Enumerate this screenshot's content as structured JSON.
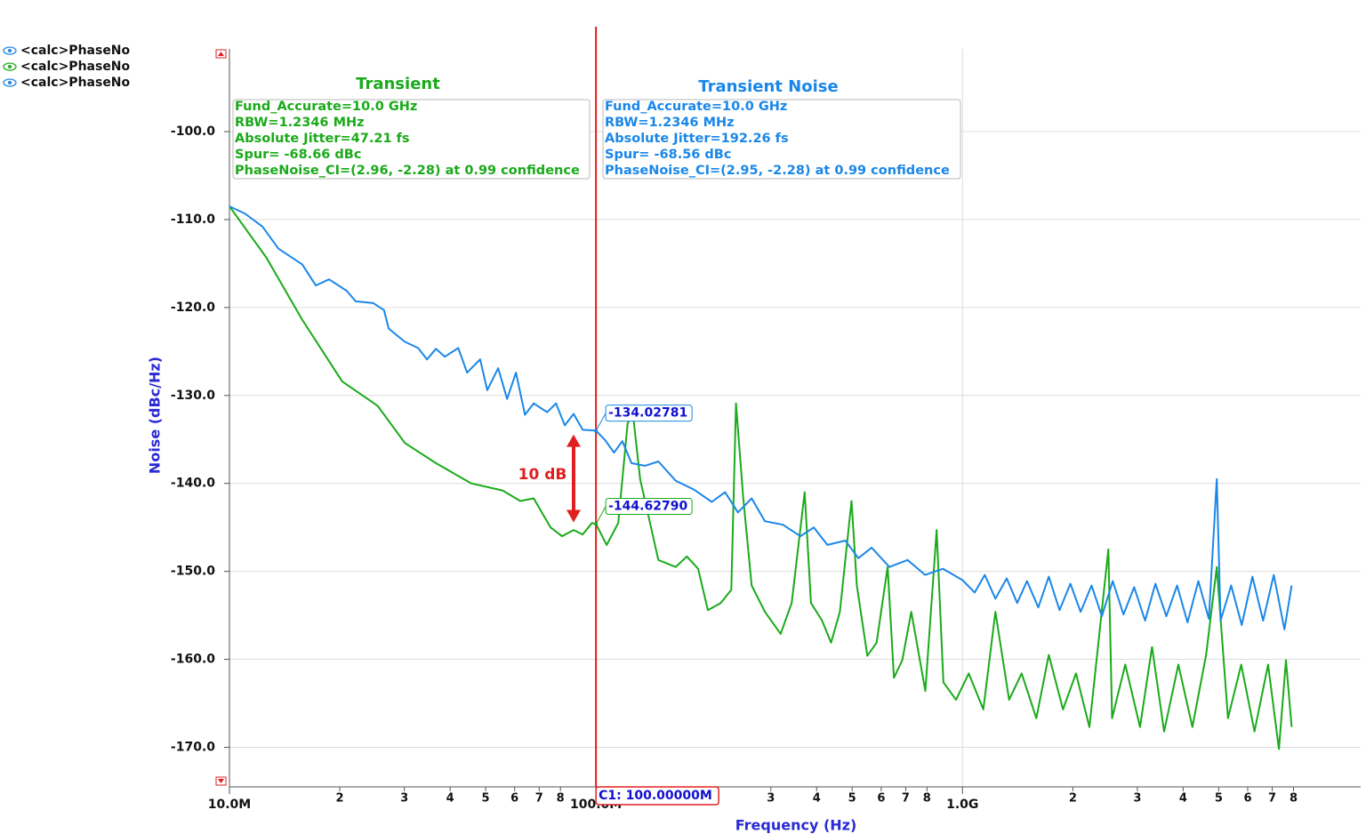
{
  "chart_data": {
    "type": "line",
    "xscale": "log",
    "xlabel": "Frequency (Hz)",
    "ylabel": "Noise (dBc/Hz)",
    "xlim": [
      10000000,
      12200000000
    ],
    "ylim": [
      -174.5,
      -90.6
    ],
    "grid": true,
    "xticks": [
      {
        "value": 10000000,
        "label": "10.0M"
      },
      {
        "value": 20000000,
        "label": "2"
      },
      {
        "value": 30000000,
        "label": "3"
      },
      {
        "value": 40000000,
        "label": "4"
      },
      {
        "value": 50000000,
        "label": "5"
      },
      {
        "value": 60000000,
        "label": "6"
      },
      {
        "value": 70000000,
        "label": "7"
      },
      {
        "value": 80000000,
        "label": "8"
      },
      {
        "value": 100000000,
        "label": "100.0M"
      },
      {
        "value": 200000000,
        "label": "2"
      },
      {
        "value": 300000000,
        "label": "3"
      },
      {
        "value": 400000000,
        "label": "4"
      },
      {
        "value": 500000000,
        "label": "5"
      },
      {
        "value": 600000000,
        "label": "6"
      },
      {
        "value": 700000000,
        "label": "7"
      },
      {
        "value": 800000000,
        "label": "8"
      },
      {
        "value": 1000000000,
        "label": "1.0G"
      },
      {
        "value": 2000000000,
        "label": "2"
      },
      {
        "value": 3000000000,
        "label": "3"
      },
      {
        "value": 4000000000,
        "label": "4"
      },
      {
        "value": 5000000000,
        "label": "5"
      },
      {
        "value": 6000000000,
        "label": "6"
      },
      {
        "value": 7000000000,
        "label": "7"
      },
      {
        "value": 8000000000,
        "label": "8"
      }
    ],
    "yticks": [
      {
        "value": -100,
        "label": "-100.0"
      },
      {
        "value": -110,
        "label": "-110.0"
      },
      {
        "value": -120,
        "label": "-120.0"
      },
      {
        "value": -130,
        "label": "-130.0"
      },
      {
        "value": -140,
        "label": "-140.0"
      },
      {
        "value": -150,
        "label": "-150.0"
      },
      {
        "value": -160,
        "label": "-160.0"
      },
      {
        "value": -170,
        "label": "-170.0"
      }
    ],
    "legend": [
      {
        "label": "<calc>PhaseNo",
        "color": "#1a87e8"
      },
      {
        "label": "<calc>PhaseNo",
        "color": "#1aaa1a"
      },
      {
        "label": "<calc>PhaseNo",
        "color": "#1a87e8"
      }
    ],
    "series": [
      {
        "color": "#1a87e8",
        "x": [
          10000000,
          11000000,
          12300000,
          13600000,
          15800000,
          17200000,
          18700000,
          20900000,
          22100000,
          24700000,
          26400000,
          27200000,
          30100000,
          32700000,
          34600000,
          36600000,
          38700000,
          42100000,
          44500000,
          48300000,
          50500000,
          54100000,
          57200000,
          60500000,
          64000000,
          67600000,
          73600000,
          77800000,
          82200000,
          86900000,
          92000000,
          100000000,
          106000000,
          112000000,
          118000000,
          125000000,
          136000000,
          148000000,
          165000000,
          185000000,
          207000000,
          225000000,
          244000000,
          266000000,
          289000000,
          324000000,
          361000000,
          393000000,
          428000000,
          479000000,
          520000000,
          565000000,
          632000000,
          708000000,
          791000000,
          885000000,
          1000000000,
          1080000000,
          1150000000,
          1230000000,
          1320000000,
          1410000000,
          1500000000,
          1610000000,
          1720000000,
          1840000000,
          1970000000,
          2100000000,
          2250000000,
          2400000000,
          2570000000,
          2750000000,
          2940000000,
          3150000000,
          3360000000,
          3600000000,
          3850000000,
          4110000000,
          4400000000,
          4700000000,
          4940000000,
          5060000000,
          5410000000,
          5780000000,
          6180000000,
          6610000000,
          7070000000,
          7560000000,
          7910000000
        ],
        "values": [
          -108.5,
          -109.3,
          -110.8,
          -113.3,
          -115.1,
          -117.5,
          -116.8,
          -118.1,
          -119.3,
          -119.5,
          -120.3,
          -122.4,
          -123.9,
          -124.6,
          -125.9,
          -124.7,
          -125.6,
          -124.6,
          -127.4,
          -125.9,
          -129.4,
          -126.9,
          -130.4,
          -127.4,
          -132.2,
          -130.9,
          -131.9,
          -130.9,
          -133.4,
          -132.1,
          -133.9,
          -134.0,
          -135.1,
          -136.5,
          -135.2,
          -137.7,
          -138.0,
          -137.5,
          -139.7,
          -140.7,
          -142.1,
          -141.0,
          -143.3,
          -141.7,
          -144.3,
          -144.7,
          -146.0,
          -145.0,
          -147.0,
          -146.5,
          -148.5,
          -147.3,
          -149.5,
          -148.7,
          -150.4,
          -149.7,
          -151.0,
          -152.4,
          -150.4,
          -153.1,
          -150.8,
          -153.6,
          -151.1,
          -154.1,
          -150.6,
          -154.4,
          -151.4,
          -154.6,
          -151.6,
          -155.1,
          -151.1,
          -154.9,
          -151.8,
          -155.6,
          -151.4,
          -155.1,
          -151.6,
          -155.8,
          -151.1,
          -155.4,
          -139.5,
          -155.6,
          -151.6,
          -156.1,
          -150.6,
          -155.6,
          -150.4,
          -156.6,
          -151.6
        ]
      },
      {
        "color": "#1aaa1a",
        "x": [
          10000000,
          12600000,
          15800000,
          20300000,
          25400000,
          30100000,
          36600000,
          45700000,
          55600000,
          62200000,
          67600000,
          75200000,
          80800000,
          86900000,
          92000000,
          97500000,
          100000000,
          107000000,
          115000000,
          122000000,
          126000000,
          132000000,
          148000000,
          165000000,
          177000000,
          190000000,
          202000000,
          219000000,
          234000000,
          241000000,
          252000000,
          266000000,
          289000000,
          319000000,
          342000000,
          371000000,
          386000000,
          414000000,
          438000000,
          463000000,
          498000000,
          515000000,
          550000000,
          583000000,
          625000000,
          650000000,
          685000000,
          725000000,
          792000000,
          850000000,
          887000000,
          960000000,
          1040000000,
          1140000000,
          1230000000,
          1340000000,
          1450000000,
          1590000000,
          1720000000,
          1880000000,
          2040000000,
          2220000000,
          2500000000,
          2560000000,
          2780000000,
          3050000000,
          3290000000,
          3550000000,
          3880000000,
          4240000000,
          4620000000,
          4940000000,
          5300000000,
          5760000000,
          6260000000,
          6820000000,
          7300000000,
          7630000000,
          7910000000
        ],
        "values": [
          -108.5,
          -114.3,
          -121.4,
          -128.4,
          -131.2,
          -135.4,
          -137.7,
          -140.0,
          -140.8,
          -142.0,
          -141.7,
          -145.0,
          -146.0,
          -145.3,
          -145.8,
          -144.5,
          -144.6,
          -147.0,
          -144.5,
          -133.2,
          -131.9,
          -139.5,
          -148.7,
          -149.5,
          -148.3,
          -149.7,
          -154.4,
          -153.6,
          -152.1,
          -130.9,
          -141.5,
          -151.6,
          -154.6,
          -157.1,
          -153.6,
          -141.0,
          -153.6,
          -155.6,
          -158.1,
          -154.6,
          -142.0,
          -151.6,
          -159.6,
          -158.1,
          -149.5,
          -162.1,
          -160.1,
          -154.6,
          -163.6,
          -145.3,
          -162.6,
          -164.6,
          -161.6,
          -165.7,
          -154.6,
          -164.6,
          -161.6,
          -166.7,
          -159.5,
          -165.7,
          -161.6,
          -167.7,
          -147.5,
          -166.7,
          -160.6,
          -167.7,
          -158.6,
          -168.2,
          -160.6,
          -167.7,
          -159.5,
          -149.5,
          -166.7,
          -160.6,
          -168.2,
          -160.6,
          -170.2,
          -160.1,
          -167.7
        ]
      }
    ],
    "annotations": [
      {
        "title": "Transient",
        "color": "#1aaa1a",
        "lines": [
          "Fund_Accurate=10.0 GHz",
          "RBW=1.2346 MHz",
          "Absolute Jitter=47.21 fs",
          "Spur= -68.66 dBc",
          "PhaseNoise_CI=(2.96, -2.28) at 0.99 confidence"
        ]
      },
      {
        "title": "Transient Noise",
        "color": "#1a87e8",
        "lines": [
          "Fund_Accurate=10.0 GHz",
          "RBW=1.2346 MHz",
          "Absolute Jitter=192.26 fs",
          "Spur= -68.56 dBc",
          "PhaseNoise_CI=(2.95, -2.28) at 0.99 confidence"
        ]
      }
    ],
    "cursor": {
      "x": 100000000,
      "label": "C1: 100.00000M",
      "color": "#e02020"
    },
    "markers": {
      "x": 100000000,
      "values": [
        -134.02781,
        -144.6279
      ],
      "value_labels": [
        "-134.02781",
        "-144.62790"
      ]
    },
    "delta_label": "10 dB"
  }
}
